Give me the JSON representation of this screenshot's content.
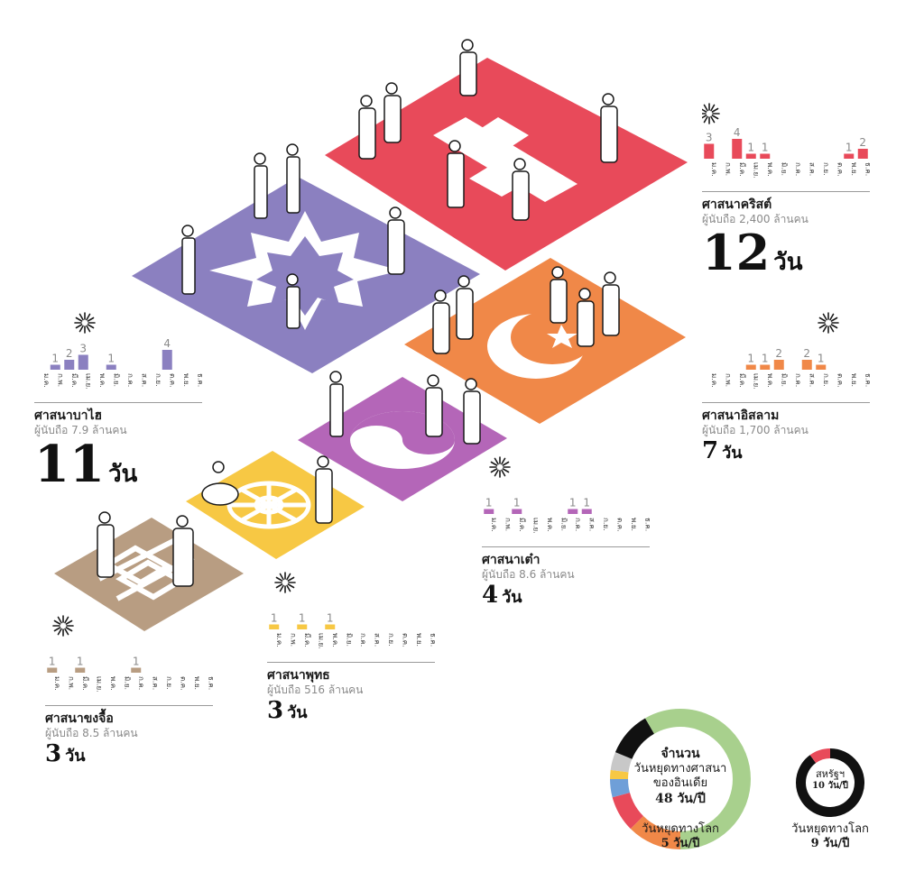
{
  "chart_data": {
    "type": "bar",
    "months": [
      "ม.ค.",
      "ก.พ.",
      "มี.ค.",
      "เม.ย.",
      "พ.ค.",
      "มิ.ย.",
      "ก.ค.",
      "ส.ค.",
      "ก.ย.",
      "ต.ค.",
      "พ.ย.",
      "ธ.ค."
    ],
    "day_unit": "วัน",
    "religions": [
      {
        "key": "christianity",
        "name": "ศาสนาคริสต์",
        "followers": "ผู้นับถือ 2,400 ล้านคน",
        "total_days": "12",
        "color": "#e84a5a",
        "values": [
          3,
          0,
          4,
          1,
          1,
          0,
          0,
          0,
          0,
          0,
          1,
          2
        ]
      },
      {
        "key": "bahai",
        "name": "ศาสนาบาไฮ",
        "followers": "ผู้นับถือ 7.9 ล้านคน",
        "total_days": "11",
        "color": "#8b80c0",
        "values": [
          0,
          1,
          2,
          3,
          0,
          1,
          0,
          0,
          0,
          4,
          0,
          0
        ]
      },
      {
        "key": "islam",
        "name": "ศาสนาอิสลาม",
        "followers": "ผู้นับถือ 1,700 ล้านคน",
        "total_days": "7",
        "color": "#f08848",
        "values": [
          0,
          0,
          0,
          1,
          1,
          2,
          0,
          2,
          1,
          0,
          0,
          0
        ]
      },
      {
        "key": "taoism",
        "name": "ศาสนาเต๋า",
        "followers": "ผู้นับถือ 8.6 ล้านคน",
        "total_days": "4",
        "color": "#b466b8",
        "values": [
          1,
          0,
          1,
          0,
          0,
          0,
          1,
          1,
          0,
          0,
          0,
          0
        ]
      },
      {
        "key": "buddhism",
        "name": "ศาสนาพุทธ",
        "followers": "ผู้นับถือ 516 ล้านคน",
        "total_days": "3",
        "color": "#f7c844",
        "values": [
          1,
          0,
          1,
          0,
          1,
          0,
          0,
          0,
          0,
          0,
          0,
          0
        ]
      },
      {
        "key": "confucianism",
        "name": "ศาสนาขงจื้อ",
        "followers": "ผู้นับถือ 8.5 ล้านคน",
        "total_days": "3",
        "color": "#b89d82",
        "values": [
          1,
          0,
          1,
          0,
          0,
          0,
          1,
          0,
          0,
          0,
          0,
          0
        ]
      }
    ],
    "donut_india": {
      "title_lines": [
        "จำนวน",
        "วันหยุดทางศาสนา",
        "ของอินเดีย"
      ],
      "value": "48 วัน/ปี",
      "caption_label": "วันหยุดทางโลก",
      "caption_value": "5 วัน/ปี",
      "segments": [
        {
          "value": 24,
          "color": "#a8d08d"
        },
        {
          "value": 6,
          "color": "#f08848"
        },
        {
          "value": 4,
          "color": "#e84a5a"
        },
        {
          "value": 2,
          "color": "#6f9fd8"
        },
        {
          "value": 1,
          "color": "#f7c844"
        },
        {
          "value": 2,
          "color": "#c8c8c8"
        },
        {
          "value": 5,
          "color": "#111111"
        },
        {
          "value": 4,
          "color": "#a8d08d"
        }
      ]
    },
    "donut_usa": {
      "title": "สหรัฐฯ",
      "value": "10 วัน/ปี",
      "caption_label": "วันหยุดทางโลก",
      "caption_value": "9 วัน/ปี",
      "segments": [
        {
          "value": 9,
          "color": "#111111"
        },
        {
          "value": 1,
          "color": "#e84a5a"
        }
      ]
    }
  }
}
